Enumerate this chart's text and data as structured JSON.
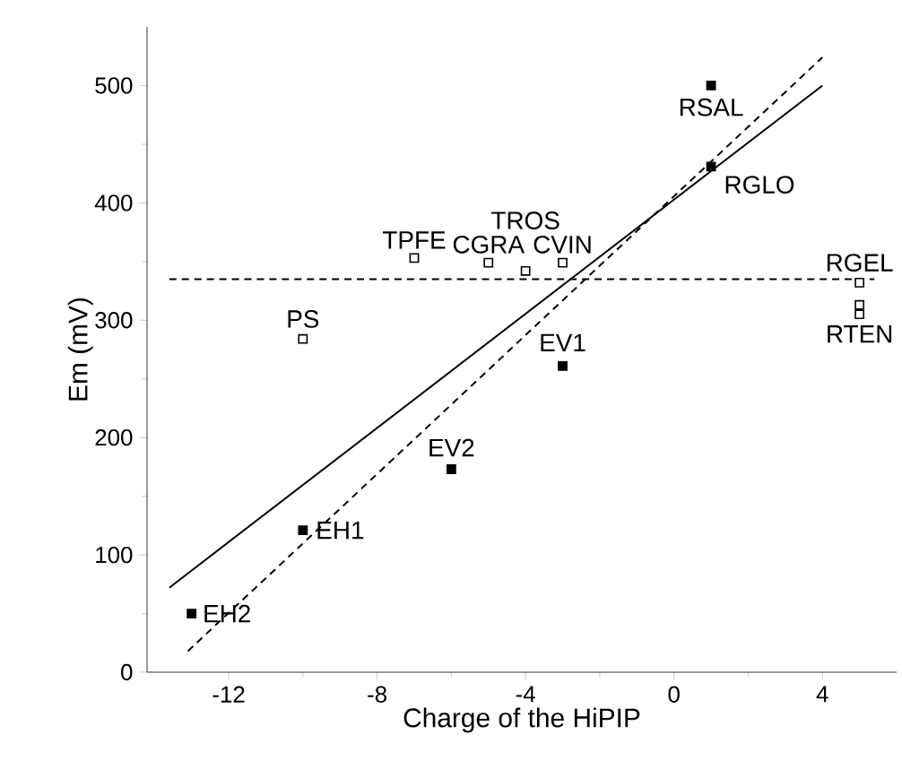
{
  "chart_data": {
    "type": "scatter",
    "xlabel": "Charge of the HiPIP",
    "ylabel": "Em (mV)",
    "xlim": [
      -14.2,
      6
    ],
    "ylim": [
      0,
      550
    ],
    "xticks": [
      -12,
      -8,
      -4,
      0,
      4
    ],
    "yticks": [
      0,
      100,
      200,
      300,
      400,
      500
    ],
    "series": [
      {
        "type": "scatter",
        "color": "#000000",
        "marker": "square",
        "x": [
          -13,
          -10,
          -6,
          -3,
          1,
          1
        ],
        "values": [
          50,
          121,
          173,
          261,
          500,
          431
        ]
      },
      {
        "type": "scatter",
        "color": "#ffffff",
        "marker": "square",
        "x": [
          -10,
          -7,
          -5,
          -4,
          -3,
          5,
          5,
          5
        ],
        "values": [
          284,
          353,
          349,
          342,
          349,
          332,
          313,
          305
        ]
      },
      {
        "type": "line",
        "color": "#000000",
        "line_style": "solid",
        "x": [
          -13.6,
          4
        ],
        "values": [
          72,
          500
        ]
      },
      {
        "type": "line",
        "color": "#000000",
        "line_style": "dashed",
        "x": [
          -13.1,
          4
        ],
        "values": [
          18,
          524
        ]
      },
      {
        "type": "line",
        "color": "#000000",
        "line_style": "dashed",
        "x": [
          -13.6,
          5.4
        ],
        "values": [
          335,
          335
        ]
      }
    ],
    "annotations": [
      {
        "text": "EH2",
        "x": -13,
        "y": 50
      },
      {
        "text": "EH1",
        "x": -10,
        "y": 121
      },
      {
        "text": "EV2",
        "x": -6,
        "y": 173
      },
      {
        "text": "EV1",
        "x": -3,
        "y": 261
      },
      {
        "text": "RSAL",
        "x": 1,
        "y": 500
      },
      {
        "text": "RGLO",
        "x": 1,
        "y": 431
      },
      {
        "text": "PS",
        "x": -10,
        "y": 284
      },
      {
        "text": "TPFE",
        "x": -7,
        "y": 353
      },
      {
        "text": "CGRA",
        "x": -5,
        "y": 349
      },
      {
        "text": "TROS",
        "x": -4,
        "y": 342
      },
      {
        "text": "CVIN",
        "x": -3,
        "y": 349
      },
      {
        "text": "RGEL",
        "x": 5,
        "y": 332
      },
      {
        "text": "RTEN",
        "x": 5,
        "y": 305
      }
    ]
  }
}
